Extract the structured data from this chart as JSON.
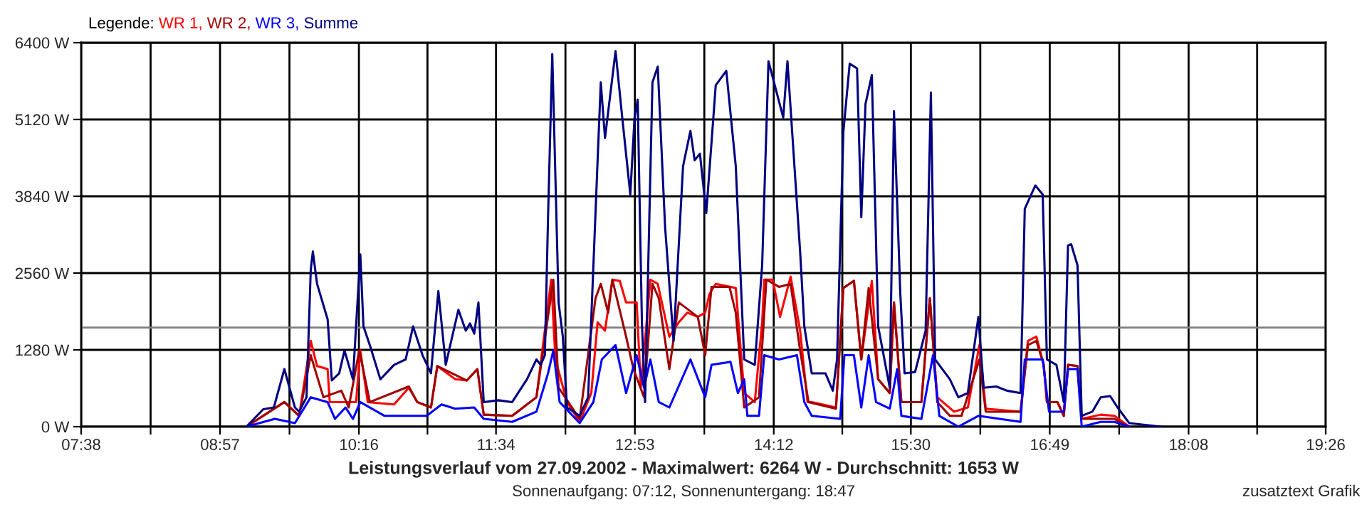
{
  "chart_data": {
    "type": "line",
    "title": "Leistungsverlauf vom 27.09.2002 - Maximalwert: 6264 W - Durchschnitt: 1653 W",
    "subtitle": "Sonnenaufgang: 07:12, Sonnenuntergang: 18:47",
    "legend_title": "Legende:",
    "annotations": [
      "zusatztext Grafik"
    ],
    "legend": "top left",
    "grid": true,
    "marker": "none",
    "line_style": "solid",
    "xlim": [
      7.6333,
      19.4333
    ],
    "xticks": [
      {
        "value": 7.6333,
        "label": "07:38"
      },
      {
        "value": 8.2917,
        "label": null
      },
      {
        "value": 8.95,
        "label": "08:57"
      },
      {
        "value": 9.6083,
        "label": null
      },
      {
        "value": 10.2667,
        "label": "10:16"
      },
      {
        "value": 10.9167,
        "label": null
      },
      {
        "value": 11.5667,
        "label": "11:34"
      },
      {
        "value": 12.225,
        "label": null
      },
      {
        "value": 12.8833,
        "label": "12:53"
      },
      {
        "value": 13.5417,
        "label": null
      },
      {
        "value": 14.2,
        "label": "14:12"
      },
      {
        "value": 14.85,
        "label": null
      },
      {
        "value": 15.5,
        "label": "15:30"
      },
      {
        "value": 16.1583,
        "label": null
      },
      {
        "value": 16.8167,
        "label": "16:49"
      },
      {
        "value": 17.475,
        "label": null
      },
      {
        "value": 18.1333,
        "label": "18:08"
      },
      {
        "value": 18.7833,
        "label": null
      },
      {
        "value": 19.4333,
        "label": "19:26"
      }
    ],
    "ylim": [
      0,
      6400
    ],
    "yticks": [
      {
        "value": 0,
        "label": "0 W"
      },
      {
        "value": 1280,
        "label": "1280 W"
      },
      {
        "value": 2560,
        "label": "2560 W"
      },
      {
        "value": 3840,
        "label": "3840 W"
      },
      {
        "value": 5120,
        "label": "5120 W"
      },
      {
        "value": 6400,
        "label": "6400 W"
      }
    ],
    "ref_lines": [
      {
        "axis": "y",
        "value": 1653,
        "color": "#808080"
      }
    ],
    "series": [
      {
        "name": "WR 1,",
        "color": "#ff0000",
        "x": [
          9.2,
          9.56,
          9.7,
          9.81,
          9.87,
          9.97,
          9.99,
          10.24,
          10.28,
          10.35,
          10.6,
          10.74,
          10.82,
          10.95,
          11.01,
          11.18,
          11.29,
          11.39,
          11.45,
          11.72,
          11.95,
          12.09,
          12.13,
          12.24,
          12.36,
          12.47,
          12.53,
          12.6,
          12.67,
          12.74,
          12.8,
          12.9,
          12.94,
          13.03,
          13.1,
          13.21,
          13.3,
          13.38,
          13.48,
          13.55,
          13.59,
          13.65,
          13.84,
          13.92,
          14.02,
          14.09,
          14.11,
          14.19,
          14.26,
          14.36,
          14.45,
          14.52,
          14.56,
          14.79,
          14.86,
          14.96,
          15.03,
          15.13,
          15.19,
          15.3,
          15.34,
          15.41,
          15.6,
          15.68,
          15.75,
          15.91,
          16.04,
          16.15,
          16.21,
          16.54,
          16.61,
          16.69,
          16.76,
          16.79,
          16.89,
          16.95,
          16.99,
          17.08,
          17.12,
          17.3,
          17.43,
          17.57
        ],
        "values": [
          0,
          410,
          180,
          1430,
          1010,
          960,
          410,
          410,
          1270,
          410,
          370,
          650,
          410,
          320,
          1010,
          790,
          770,
          960,
          200,
          180,
          490,
          2450,
          1120,
          410,
          80,
          560,
          1740,
          1600,
          2450,
          2430,
          2070,
          2070,
          650,
          2450,
          2380,
          1500,
          1740,
          1900,
          1830,
          1900,
          2210,
          2380,
          2310,
          560,
          410,
          1740,
          2450,
          2450,
          1830,
          2500,
          1600,
          410,
          410,
          320,
          2310,
          2430,
          1120,
          2430,
          790,
          560,
          2070,
          410,
          410,
          2140,
          490,
          250,
          320,
          1360,
          300,
          250,
          1430,
          1500,
          1030,
          410,
          410,
          180,
          1030,
          1010,
          130,
          200,
          180,
          0
        ]
      },
      {
        "name": "WR 2,",
        "color": "#a00000",
        "x": [
          9.2,
          9.56,
          9.7,
          9.81,
          9.93,
          10.1,
          10.17,
          10.27,
          10.28,
          10.37,
          10.74,
          10.82,
          10.95,
          11.01,
          11.29,
          11.39,
          11.45,
          11.72,
          11.95,
          12.11,
          12.16,
          12.36,
          12.51,
          12.56,
          12.63,
          12.67,
          12.8,
          12.87,
          12.97,
          13.05,
          13.11,
          13.21,
          13.3,
          13.48,
          13.55,
          13.61,
          13.78,
          13.84,
          13.92,
          14.06,
          14.13,
          14.25,
          14.36,
          14.45,
          14.53,
          14.79,
          14.86,
          14.96,
          15.03,
          15.1,
          15.19,
          15.3,
          15.34,
          15.41,
          15.6,
          15.68,
          15.75,
          15.87,
          15.98,
          16.15,
          16.21,
          16.54,
          16.61,
          16.69,
          16.76,
          16.79,
          16.89,
          16.95,
          16.99,
          17.08,
          17.12,
          17.3,
          17.43,
          17.57
        ],
        "values": [
          0,
          410,
          180,
          1190,
          490,
          600,
          320,
          1270,
          1190,
          410,
          670,
          410,
          320,
          1010,
          770,
          960,
          200,
          180,
          490,
          2450,
          650,
          130,
          2140,
          2380,
          1900,
          2450,
          1500,
          960,
          490,
          2380,
          2140,
          960,
          2070,
          1830,
          1190,
          2330,
          2330,
          1900,
          320,
          490,
          2450,
          2330,
          2380,
          1270,
          410,
          300,
          2310,
          2430,
          1120,
          2310,
          790,
          560,
          2070,
          410,
          410,
          2140,
          410,
          180,
          180,
          1120,
          250,
          250,
          1360,
          1430,
          1030,
          410,
          410,
          180,
          1030,
          1010,
          130,
          130,
          130,
          0
        ]
      },
      {
        "name": "WR 3,",
        "color": "#0000ff",
        "x": [
          9.2,
          9.47,
          9.66,
          9.81,
          9.97,
          10.04,
          10.14,
          10.21,
          10.28,
          10.51,
          10.74,
          10.91,
          11.05,
          11.18,
          11.36,
          11.45,
          11.72,
          11.95,
          12.06,
          12.11,
          12.17,
          12.36,
          12.49,
          12.57,
          12.7,
          12.8,
          12.9,
          12.97,
          13.03,
          13.11,
          13.21,
          13.41,
          13.55,
          13.61,
          13.79,
          13.86,
          13.92,
          13.95,
          14.06,
          14.11,
          14.25,
          14.42,
          14.49,
          14.56,
          14.83,
          14.87,
          14.96,
          15.03,
          15.1,
          15.17,
          15.3,
          15.37,
          15.41,
          15.6,
          15.71,
          15.77,
          15.95,
          16.14,
          16.54,
          16.58,
          16.75,
          16.81,
          16.95,
          16.99,
          17.08,
          17.12,
          17.3,
          17.43,
          17.57
        ],
        "values": [
          0,
          130,
          60,
          490,
          410,
          130,
          320,
          130,
          410,
          180,
          180,
          180,
          370,
          300,
          320,
          130,
          80,
          250,
          890,
          1270,
          410,
          60,
          410,
          1120,
          1360,
          560,
          1190,
          650,
          1120,
          410,
          320,
          1120,
          490,
          1030,
          1080,
          560,
          790,
          180,
          180,
          1190,
          1120,
          1190,
          410,
          180,
          130,
          1190,
          1190,
          320,
          1190,
          410,
          300,
          960,
          180,
          130,
          1190,
          180,
          0,
          180,
          80,
          1120,
          1120,
          250,
          250,
          960,
          960,
          0,
          80,
          80,
          0
        ]
      },
      {
        "name": "Summe",
        "color": "#000080",
        "x": [
          9.2,
          9.36,
          9.46,
          9.56,
          9.66,
          9.7,
          9.77,
          9.81,
          9.83,
          9.87,
          9.97,
          10.01,
          10.08,
          10.13,
          10.21,
          10.28,
          10.31,
          10.37,
          10.47,
          10.6,
          10.71,
          10.78,
          10.87,
          10.95,
          11.02,
          11.09,
          11.21,
          11.28,
          11.32,
          11.36,
          11.4,
          11.45,
          11.59,
          11.72,
          11.86,
          11.95,
          11.99,
          12.03,
          12.06,
          12.1,
          12.16,
          12.2,
          12.24,
          12.36,
          12.44,
          12.53,
          12.56,
          12.6,
          12.7,
          12.76,
          12.84,
          12.88,
          12.91,
          12.95,
          12.98,
          13.05,
          13.1,
          13.17,
          13.25,
          13.34,
          13.41,
          13.45,
          13.5,
          13.56,
          13.61,
          13.65,
          13.75,
          13.84,
          13.92,
          14.02,
          14.09,
          14.15,
          14.29,
          14.33,
          14.45,
          14.49,
          14.56,
          14.69,
          14.76,
          14.8,
          14.86,
          14.92,
          14.99,
          15.03,
          15.07,
          15.13,
          15.19,
          15.3,
          15.34,
          15.4,
          15.44,
          15.54,
          15.64,
          15.69,
          15.73,
          15.87,
          15.95,
          16.04,
          16.14,
          16.19,
          16.31,
          16.41,
          16.54,
          16.58,
          16.68,
          16.75,
          16.79,
          16.88,
          16.95,
          16.99,
          17.02,
          17.08,
          17.12,
          17.22,
          17.3,
          17.39,
          17.46,
          17.57,
          17.87
        ],
        "values": [
          0,
          290,
          320,
          960,
          320,
          250,
          490,
          2610,
          2920,
          2380,
          1790,
          770,
          890,
          1270,
          790,
          2870,
          1670,
          1360,
          790,
          1030,
          1120,
          1670,
          1190,
          890,
          2260,
          1030,
          1950,
          1600,
          1720,
          1550,
          2070,
          410,
          440,
          410,
          790,
          1120,
          1030,
          1190,
          3490,
          6210,
          2070,
          1500,
          320,
          180,
          490,
          4440,
          5740,
          4810,
          6260,
          5210,
          3870,
          5150,
          5450,
          1740,
          410,
          5740,
          6000,
          3320,
          1430,
          4340,
          4930,
          4440,
          4550,
          3560,
          4740,
          5690,
          5930,
          4340,
          1120,
          1030,
          2690,
          6090,
          5150,
          6090,
          2920,
          1670,
          890,
          890,
          600,
          1120,
          4910,
          6050,
          5970,
          3490,
          5380,
          5860,
          1670,
          650,
          5260,
          2210,
          890,
          910,
          1600,
          5570,
          1120,
          790,
          490,
          560,
          1830,
          650,
          670,
          600,
          560,
          3630,
          4020,
          3870,
          1120,
          1030,
          410,
          3020,
          3040,
          2690,
          180,
          250,
          490,
          510,
          320,
          60,
          0
        ]
      }
    ]
  }
}
